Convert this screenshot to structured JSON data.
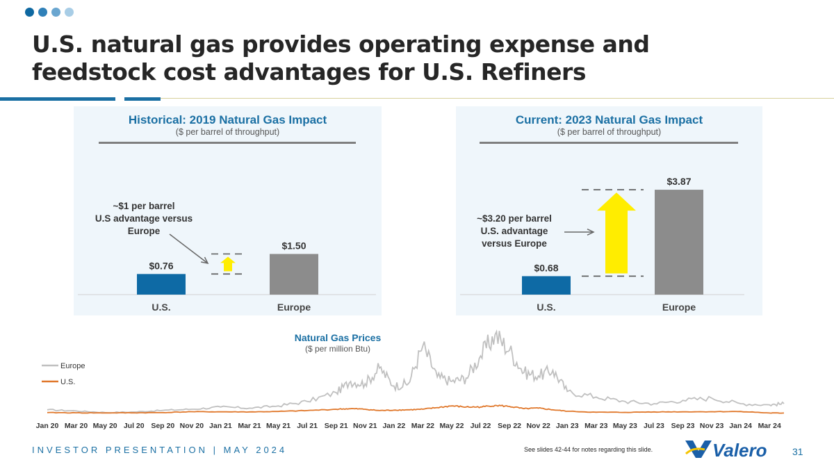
{
  "header": {
    "title_line1": "U.S. natural gas provides operating expense and",
    "title_line2": "feedstock cost advantages for U.S. Refiners",
    "dot_colors": [
      "#0e68a1",
      "#2f80b8",
      "#6aa6d0",
      "#a8cde6"
    ]
  },
  "colors": {
    "us": "#0e6aa5",
    "europe": "#8c8c8c",
    "arrow": "#ffed00",
    "accent": "#1a6fa3",
    "europe_line": "#c0c0c0",
    "us_line": "#e0772a"
  },
  "chart_data": [
    {
      "type": "bar",
      "title": "Historical: 2019 Natural Gas Impact",
      "subtitle": "($ per barrel of throughput)",
      "categories": [
        "U.S.",
        "Europe"
      ],
      "values": [
        0.76,
        1.5
      ],
      "value_labels": [
        "$0.76",
        "$1.50"
      ],
      "ylim": [
        0,
        4.3
      ],
      "annotation": "~$1 per barrel U.S advantage versus Europe",
      "annotation_lines": [
        "~$1 per barrel",
        "U.S advantage versus",
        "Europe"
      ]
    },
    {
      "type": "bar",
      "title": "Current: 2023 Natural Gas Impact",
      "subtitle": "($ per barrel of throughput)",
      "categories": [
        "U.S.",
        "Europe"
      ],
      "values": [
        0.68,
        3.87
      ],
      "value_labels": [
        "$0.68",
        "$3.87"
      ],
      "ylim": [
        0,
        4.3
      ],
      "annotation": "~$3.20 per barrel U.S. advantage versus Europe",
      "annotation_lines": [
        "~$3.20 per barrel",
        "U.S. advantage",
        "versus Europe"
      ]
    },
    {
      "type": "line",
      "title": "Natural Gas Prices",
      "subtitle": "($ per million Btu)",
      "legend": [
        "Europe",
        "U.S."
      ],
      "legend_position": "left",
      "x_tick_labels": [
        "Jan 20",
        "Mar 20",
        "May 20",
        "Jul 20",
        "Sep 20",
        "Nov 20",
        "Jan 21",
        "Mar 21",
        "May 21",
        "Jul 21",
        "Sep 21",
        "Nov 21",
        "Jan 22",
        "Mar 22",
        "May 22",
        "Jul 22",
        "Sep 22",
        "Nov 22",
        "Jan 23",
        "Mar 23",
        "May 23",
        "Jul 23",
        "Sep 23",
        "Nov 23",
        "Jan 24",
        "Mar 24"
      ],
      "ylim": [
        0,
        90
      ],
      "series": [
        {
          "name": "Europe",
          "x": [
            "Jan 20",
            "Mar 20",
            "May 20",
            "Jul 20",
            "Sep 20",
            "Nov 20",
            "Jan 21",
            "Mar 21",
            "May 21",
            "Jul 21",
            "Sep 21",
            "Oct 21",
            "Nov 21",
            "Dec 21",
            "Jan 22",
            "Feb 22",
            "Mar 22",
            "Apr 22",
            "May 22",
            "Jun 22",
            "Jul 22",
            "Aug 22",
            "Sep 22",
            "Oct 22",
            "Nov 22",
            "Dec 22",
            "Jan 23",
            "Mar 23",
            "May 23",
            "Jul 23",
            "Sep 23",
            "Nov 23",
            "Jan 24",
            "Mar 24",
            "Apr 24"
          ],
          "values": [
            4.5,
            3.5,
            2,
            2.5,
            4,
            5,
            7,
            6,
            8,
            12,
            20,
            30,
            28,
            42,
            26,
            28,
            62,
            34,
            30,
            33,
            53,
            72,
            58,
            38,
            35,
            40,
            21,
            16,
            12,
            10,
            13,
            15,
            10,
            9,
            10
          ]
        },
        {
          "name": "U.S.",
          "x": [
            "Jan 20",
            "Mar 20",
            "May 20",
            "Jul 20",
            "Sep 20",
            "Nov 20",
            "Jan 21",
            "Mar 21",
            "May 21",
            "Jul 21",
            "Sep 21",
            "Oct 21",
            "Nov 21",
            "Dec 21",
            "Jan 22",
            "Feb 22",
            "Mar 22",
            "Apr 22",
            "May 22",
            "Jun 22",
            "Jul 22",
            "Aug 22",
            "Sep 22",
            "Oct 22",
            "Nov 22",
            "Dec 22",
            "Jan 23",
            "Mar 23",
            "May 23",
            "Jul 23",
            "Sep 23",
            "Nov 23",
            "Jan 24",
            "Mar 24",
            "Apr 24"
          ],
          "values": [
            2,
            1.8,
            1.7,
            1.8,
            2,
            2.8,
            2.7,
            2.6,
            3,
            3.8,
            5,
            5.5,
            5,
            3.8,
            4.2,
            4.5,
            5,
            6.5,
            8,
            7,
            7,
            8.5,
            7.5,
            5.5,
            6,
            4.5,
            3.2,
            2.3,
            2.2,
            2.6,
            2.7,
            2.8,
            3,
            1.6,
            1.6
          ]
        }
      ]
    }
  ],
  "footer": {
    "label": "INVESTOR PRESENTATION | MAY 2024",
    "note": "See slides 42-44 for notes regarding this slide.",
    "page": "31",
    "logo_text": "Valero"
  }
}
